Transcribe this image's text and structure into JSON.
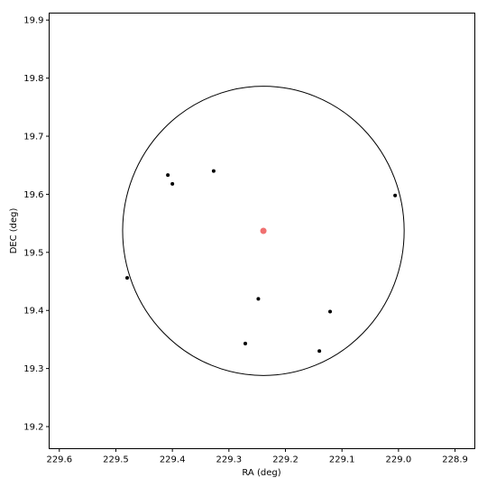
{
  "chart_data": {
    "type": "scatter",
    "xlabel": "RA (deg)",
    "ylabel": "DEC (deg)",
    "xlim": [
      229.618,
      228.865
    ],
    "ylim": [
      19.162,
      19.912
    ],
    "x_ticks": [
      229.6,
      229.5,
      229.4,
      229.3,
      229.2,
      229.1,
      229.0,
      228.9
    ],
    "x_tick_labels": [
      "229.6",
      "229.5",
      "229.4",
      "229.3",
      "229.2",
      "229.1",
      "229.0",
      "228.9"
    ],
    "y_ticks": [
      19.2,
      19.3,
      19.4,
      19.5,
      19.6,
      19.7,
      19.8,
      19.9
    ],
    "y_tick_labels": [
      "19.2",
      "19.3",
      "19.4",
      "19.5",
      "19.6",
      "19.7",
      "19.8",
      "19.9"
    ],
    "grid": false,
    "points": [
      {
        "x": 229.408,
        "y": 19.633
      },
      {
        "x": 229.4,
        "y": 19.618
      },
      {
        "x": 229.327,
        "y": 19.64
      },
      {
        "x": 229.006,
        "y": 19.598
      },
      {
        "x": 229.48,
        "y": 19.456
      },
      {
        "x": 229.248,
        "y": 19.42
      },
      {
        "x": 229.121,
        "y": 19.398
      },
      {
        "x": 229.271,
        "y": 19.343
      },
      {
        "x": 229.14,
        "y": 19.33
      }
    ],
    "point_color": "#000000",
    "center": {
      "x": 229.239,
      "y": 19.537
    },
    "center_color": "#f07070",
    "circle": {
      "center_x": 229.239,
      "center_y": 19.537,
      "radius": 0.249
    },
    "circle_color": "#000000"
  }
}
